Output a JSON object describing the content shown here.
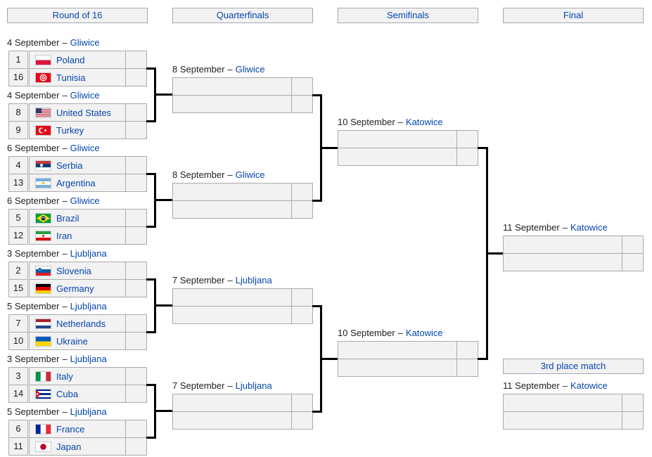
{
  "separator": "–",
  "headers": {
    "round_of_16": "Round of 16",
    "quarterfinals": "Quarterfinals",
    "semifinals": "Semifinals",
    "final": "Final",
    "third_place": "3rd place match"
  },
  "colors": {
    "link": "#0645ad",
    "cell_background": "#f2f2f2",
    "cell_border": "#aaaaaa",
    "header_border": "#a2a9b1",
    "connector": "#000000",
    "text": "#202122"
  },
  "r16": {
    "matches": [
      {
        "date": "4 September",
        "venue": "Gliwice",
        "teams": [
          {
            "seed": "1",
            "flag": "poland",
            "name": "Poland",
            "score": ""
          },
          {
            "seed": "16",
            "flag": "tunisia",
            "name": "Tunisia",
            "score": ""
          }
        ]
      },
      {
        "date": "4 September",
        "venue": "Gliwice",
        "teams": [
          {
            "seed": "8",
            "flag": "usa",
            "name": "United States",
            "score": ""
          },
          {
            "seed": "9",
            "flag": "turkey",
            "name": "Turkey",
            "score": ""
          }
        ]
      },
      {
        "date": "6 September",
        "venue": "Gliwice",
        "teams": [
          {
            "seed": "4",
            "flag": "serbia",
            "name": "Serbia",
            "score": ""
          },
          {
            "seed": "13",
            "flag": "argentina",
            "name": "Argentina",
            "score": ""
          }
        ]
      },
      {
        "date": "6 September",
        "venue": "Gliwice",
        "teams": [
          {
            "seed": "5",
            "flag": "brazil",
            "name": "Brazil",
            "score": ""
          },
          {
            "seed": "12",
            "flag": "iran",
            "name": "Iran",
            "score": ""
          }
        ]
      },
      {
        "date": "3 September",
        "venue": "Ljubljana",
        "teams": [
          {
            "seed": "2",
            "flag": "slovenia",
            "name": "Slovenia",
            "score": ""
          },
          {
            "seed": "15",
            "flag": "germany",
            "name": "Germany",
            "score": ""
          }
        ]
      },
      {
        "date": "5 September",
        "venue": "Ljubljana",
        "teams": [
          {
            "seed": "7",
            "flag": "netherlands",
            "name": "Netherlands",
            "score": ""
          },
          {
            "seed": "10",
            "flag": "ukraine",
            "name": "Ukraine",
            "score": ""
          }
        ]
      },
      {
        "date": "3 September",
        "venue": "Ljubljana",
        "teams": [
          {
            "seed": "3",
            "flag": "italy",
            "name": "Italy",
            "score": ""
          },
          {
            "seed": "14",
            "flag": "cuba",
            "name": "Cuba",
            "score": ""
          }
        ]
      },
      {
        "date": "5 September",
        "venue": "Ljubljana",
        "teams": [
          {
            "seed": "6",
            "flag": "france",
            "name": "France",
            "score": ""
          },
          {
            "seed": "11",
            "flag": "japan",
            "name": "Japan",
            "score": ""
          }
        ]
      }
    ]
  },
  "qf": {
    "matches": [
      {
        "date": "8 September",
        "venue": "Gliwice",
        "teams": [
          {
            "name": "",
            "score": ""
          },
          {
            "name": "",
            "score": ""
          }
        ]
      },
      {
        "date": "8 September",
        "venue": "Gliwice",
        "teams": [
          {
            "name": "",
            "score": ""
          },
          {
            "name": "",
            "score": ""
          }
        ]
      },
      {
        "date": "7 September",
        "venue": "Ljubljana",
        "teams": [
          {
            "name": "",
            "score": ""
          },
          {
            "name": "",
            "score": ""
          }
        ]
      },
      {
        "date": "7 September",
        "venue": "Ljubljana",
        "teams": [
          {
            "name": "",
            "score": ""
          },
          {
            "name": "",
            "score": ""
          }
        ]
      }
    ]
  },
  "sf": {
    "matches": [
      {
        "date": "10 September",
        "venue": "Katowice",
        "teams": [
          {
            "name": "",
            "score": ""
          },
          {
            "name": "",
            "score": ""
          }
        ]
      },
      {
        "date": "10 September",
        "venue": "Katowice",
        "teams": [
          {
            "name": "",
            "score": ""
          },
          {
            "name": "",
            "score": ""
          }
        ]
      }
    ]
  },
  "final": {
    "matches": [
      {
        "date": "11 September",
        "venue": "Katowice",
        "teams": [
          {
            "name": "",
            "score": ""
          },
          {
            "name": "",
            "score": ""
          }
        ]
      }
    ]
  },
  "third": {
    "matches": [
      {
        "date": "11 September",
        "venue": "Katowice",
        "teams": [
          {
            "name": "",
            "score": ""
          },
          {
            "name": "",
            "score": ""
          }
        ]
      }
    ]
  }
}
